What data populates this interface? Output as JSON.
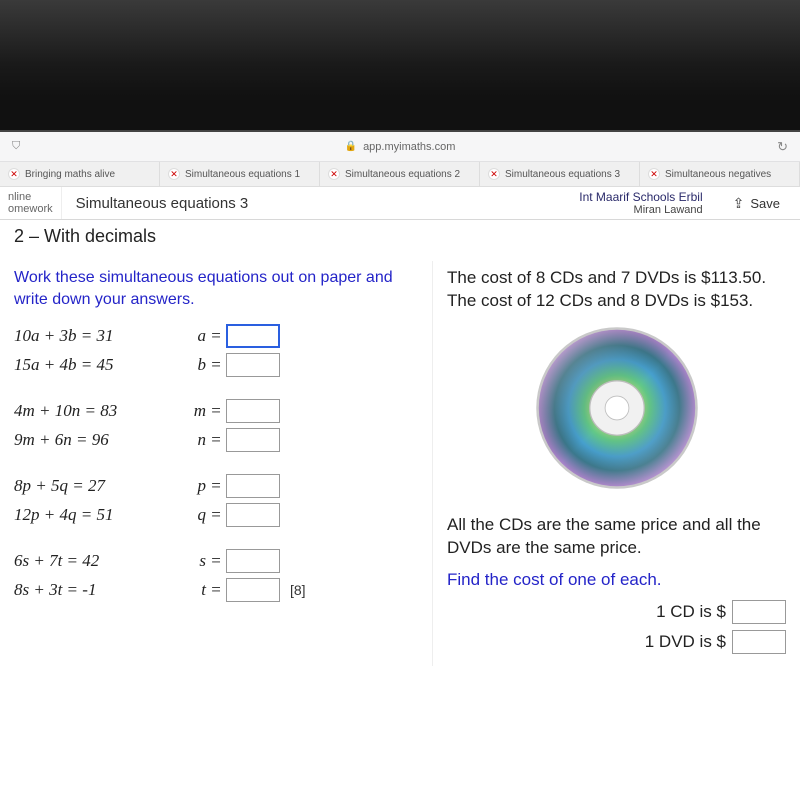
{
  "browser": {
    "url_host": "app.myimaths.com",
    "tabs": [
      {
        "label": "Bringing maths alive"
      },
      {
        "label": "Simultaneous equations 1"
      },
      {
        "label": "Simultaneous equations 2"
      },
      {
        "label": "Simultaneous equations 3"
      },
      {
        "label": "Simultaneous negatives"
      }
    ]
  },
  "header": {
    "crumb_top": "nline",
    "crumb_bottom": "omework",
    "lesson_title": "Simultaneous equations 3",
    "school": "Int Maarif Schools Erbil",
    "student": "Miran Lawand",
    "save_label": "Save"
  },
  "page": {
    "section_title": "2 – With decimals",
    "instruction": "Work these simultaneous equations out on paper and write down your answers.",
    "marks": "[8]",
    "blocks": [
      {
        "eq1": "10a + 3b = 31",
        "eq2": "15a + 4b = 45",
        "v1": "a",
        "v2": "b",
        "a1": "",
        "a2": "",
        "first_focused": true
      },
      {
        "eq1": "4m + 10n = 83",
        "eq2": "9m + 6n = 96",
        "v1": "m",
        "v2": "n",
        "a1": "",
        "a2": ""
      },
      {
        "eq1": "8p + 5q = 27",
        "eq2": "12p + 4q = 51",
        "v1": "p",
        "v2": "q",
        "a1": "",
        "a2": ""
      },
      {
        "eq1": "6s + 7t = 42",
        "eq2": "8s + 3t = -1",
        "v1": "s",
        "v2": "t",
        "a1": "",
        "a2": ""
      }
    ],
    "word_problem": {
      "line1": "The cost of 8 CDs and 7 DVDs is $113.50.",
      "line2": "The cost of 12 CDs and 8 DVDs is $153.",
      "note": "All the CDs are the same price and all the DVDs are the same price.",
      "find": "Find the cost of one of each.",
      "ans1_label": "1 CD is $",
      "ans2_label": "1 DVD is $",
      "ans1": "",
      "ans2": ""
    }
  },
  "disc": {
    "colors": {
      "rim": "#c9c9c9",
      "g1": "#67d38e",
      "g2": "#4aa8d9",
      "g3": "#b58bd8",
      "g4": "#e3e97a",
      "g5": "#3e7f94",
      "hub": "#f1f1f1",
      "hole": "#ffffff",
      "hub_ring": "#bdbdbd"
    }
  },
  "colors": {
    "instruction": "#2424c8",
    "text": "#222222",
    "input_border": "#999999",
    "input_focus": "#2a5fe0"
  }
}
